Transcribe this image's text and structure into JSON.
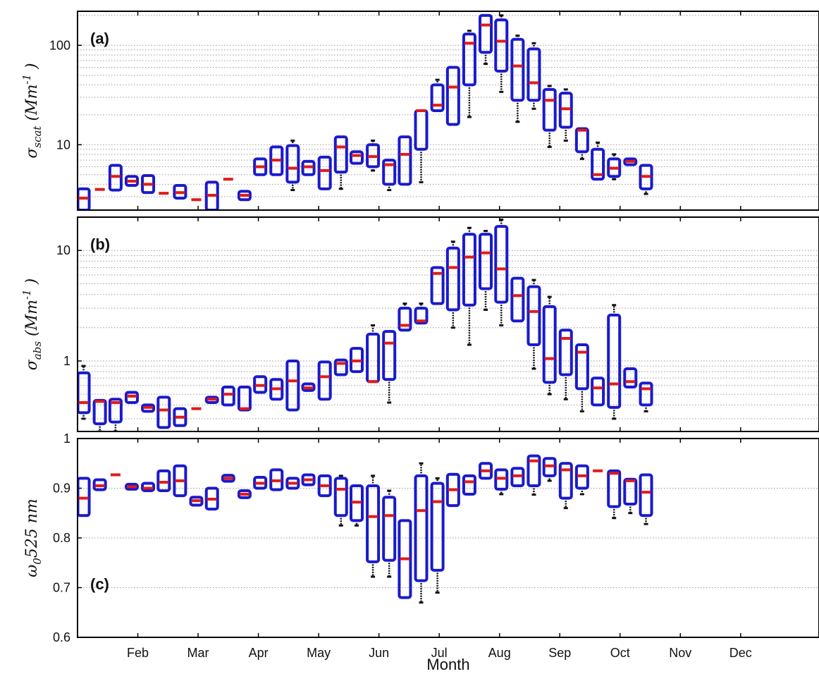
{
  "colors": {
    "box": "#1a1acc",
    "median": "#e01b1b",
    "whisker": "#111111",
    "grid": "#9a9a9a",
    "axis": "#000000"
  },
  "x_axis_title": "Month",
  "chart_data": [
    {
      "type": "box",
      "panel_label": "(a)",
      "ylabel": {
        "symbol": "σ",
        "sub": "scat",
        "unit_open": " (Mm",
        "sup": "-1",
        "unit_close": " )"
      },
      "yscale": "log",
      "ylim": [
        2.2,
        220
      ],
      "yticks": [
        10,
        100
      ],
      "ytick_labels": [
        "10",
        "100"
      ],
      "grid": "dotted, minor log gridlines",
      "xlim": [
        0,
        12.3
      ],
      "xticks": [
        1,
        2,
        3,
        4,
        5,
        6,
        7,
        8,
        9,
        10,
        11
      ],
      "xtick_labels": [
        "Feb",
        "Mar",
        "Apr",
        "May",
        "Jun",
        "Jul",
        "Aug",
        "Sep",
        "Oct",
        "Nov",
        "Dec"
      ],
      "boxes": [
        {
          "x": 0.1,
          "q1": 2.2,
          "median": 2.9,
          "q3": 3.6
        },
        {
          "x": 0.37,
          "q1": 3.55,
          "median": 3.55,
          "q3": 3.55
        },
        {
          "x": 0.63,
          "q1": 3.5,
          "median": 4.8,
          "q3": 6.2
        },
        {
          "x": 0.9,
          "q1": 3.9,
          "median": 4.3,
          "q3": 4.8
        },
        {
          "x": 1.17,
          "q1": 3.3,
          "median": 4.0,
          "q3": 4.9
        },
        {
          "x": 1.43,
          "q1": 3.25,
          "median": 3.25,
          "q3": 3.25
        },
        {
          "x": 1.7,
          "q1": 2.9,
          "median": 3.3,
          "q3": 3.9
        },
        {
          "x": 1.97,
          "q1": 2.8,
          "median": 2.8,
          "q3": 2.8
        },
        {
          "x": 2.23,
          "q1": 2.2,
          "median": 3.1,
          "q3": 4.2
        },
        {
          "x": 2.5,
          "q1": 4.5,
          "median": 4.5,
          "q3": 4.5
        },
        {
          "x": 2.77,
          "q1": 2.8,
          "median": 3.1,
          "q3": 3.4
        },
        {
          "x": 3.03,
          "q1": 5.0,
          "median": 6.0,
          "q3": 7.2
        },
        {
          "x": 3.3,
          "q1": 5.0,
          "median": 7.0,
          "q3": 9.5
        },
        {
          "x": 3.57,
          "q1": 4.2,
          "median": 5.8,
          "q3": 9.8,
          "wlo": 3.5,
          "whi": 11
        },
        {
          "x": 3.83,
          "q1": 5.0,
          "median": 6.0,
          "q3": 6.8
        },
        {
          "x": 4.1,
          "q1": 3.6,
          "median": 5.5,
          "q3": 7.5
        },
        {
          "x": 4.37,
          "q1": 5.3,
          "median": 9.5,
          "q3": 12,
          "wlo": 3.6
        },
        {
          "x": 4.63,
          "q1": 6.5,
          "median": 7.8,
          "q3": 8.5
        },
        {
          "x": 4.9,
          "q1": 6.0,
          "median": 7.6,
          "q3": 10,
          "wlo": 5.5,
          "whi": 11
        },
        {
          "x": 5.17,
          "q1": 4.0,
          "median": 6.3,
          "q3": 7.0,
          "wlo": 3.5
        },
        {
          "x": 5.43,
          "q1": 4.0,
          "median": 8.0,
          "q3": 12
        },
        {
          "x": 5.7,
          "q1": 9.0,
          "median": 22,
          "q3": 22,
          "wlo": 4.2
        },
        {
          "x": 5.97,
          "q1": 22,
          "median": 25,
          "q3": 40,
          "whi": 45
        },
        {
          "x": 6.23,
          "q1": 16,
          "median": 38,
          "q3": 60
        },
        {
          "x": 6.5,
          "q1": 40,
          "median": 105,
          "q3": 130,
          "wlo": 19,
          "whi": 140
        },
        {
          "x": 6.77,
          "q1": 85,
          "median": 160,
          "q3": 200,
          "wlo": 65
        },
        {
          "x": 7.03,
          "q1": 55,
          "median": 110,
          "q3": 180,
          "wlo": 34,
          "whi": 200
        },
        {
          "x": 7.3,
          "q1": 28,
          "median": 62,
          "q3": 115,
          "wlo": 17,
          "whi": 125
        },
        {
          "x": 7.57,
          "q1": 28,
          "median": 42,
          "q3": 92,
          "wlo": 23,
          "whi": 105
        },
        {
          "x": 7.83,
          "q1": 14,
          "median": 28,
          "q3": 36,
          "wlo": 9.5,
          "whi": 39
        },
        {
          "x": 8.1,
          "q1": 15,
          "median": 23,
          "q3": 33,
          "wlo": 11,
          "whi": 36
        },
        {
          "x": 8.37,
          "q1": 8.5,
          "median": 14,
          "q3": 14.5,
          "wlo": 7.2
        },
        {
          "x": 8.63,
          "q1": 4.5,
          "median": 5.0,
          "q3": 9.0,
          "whi": 10.5
        },
        {
          "x": 8.9,
          "q1": 4.8,
          "median": 5.8,
          "q3": 7.2,
          "wlo": 4.5,
          "whi": 8.0
        },
        {
          "x": 9.17,
          "q1": 6.3,
          "median": 6.8,
          "q3": 7.2
        },
        {
          "x": 9.43,
          "q1": 3.6,
          "median": 4.8,
          "q3": 6.2,
          "wlo": 3.2
        }
      ]
    },
    {
      "type": "box",
      "panel_label": "(b)",
      "ylabel": {
        "symbol": "σ",
        "sub": "abs",
        "unit_open": " (Mm",
        "sup": "-1",
        "unit_close": " )"
      },
      "yscale": "log",
      "ylim": [
        0.23,
        20
      ],
      "yticks": [
        1,
        10
      ],
      "ytick_labels": [
        "1",
        "10"
      ],
      "grid": "dotted, minor log gridlines",
      "xlim": [
        0,
        12.3
      ],
      "xticks": [
        1,
        2,
        3,
        4,
        5,
        6,
        7,
        8,
        9,
        10,
        11
      ],
      "xtick_labels": [
        "Feb",
        "Mar",
        "Apr",
        "May",
        "Jun",
        "Jul",
        "Aug",
        "Sep",
        "Oct",
        "Nov",
        "Dec"
      ],
      "boxes": [
        {
          "x": 0.1,
          "q1": 0.34,
          "median": 0.42,
          "q3": 0.78,
          "wlo": 0.3,
          "whi": 0.9
        },
        {
          "x": 0.37,
          "q1": 0.27,
          "median": 0.43,
          "q3": 0.44,
          "wlo": 0.23
        },
        {
          "x": 0.63,
          "q1": 0.28,
          "median": 0.42,
          "q3": 0.45,
          "wlo": 0.23
        },
        {
          "x": 0.9,
          "q1": 0.42,
          "median": 0.48,
          "q3": 0.52
        },
        {
          "x": 1.17,
          "q1": 0.35,
          "median": 0.38,
          "q3": 0.4
        },
        {
          "x": 1.43,
          "q1": 0.25,
          "median": 0.36,
          "q3": 0.47
        },
        {
          "x": 1.7,
          "q1": 0.26,
          "median": 0.31,
          "q3": 0.37
        },
        {
          "x": 1.97,
          "q1": 0.37,
          "median": 0.37,
          "q3": 0.37
        },
        {
          "x": 2.23,
          "q1": 0.42,
          "median": 0.45,
          "q3": 0.47
        },
        {
          "x": 2.5,
          "q1": 0.4,
          "median": 0.5,
          "q3": 0.58
        },
        {
          "x": 2.77,
          "q1": 0.36,
          "median": 0.37,
          "q3": 0.58
        },
        {
          "x": 3.03,
          "q1": 0.52,
          "median": 0.6,
          "q3": 0.72
        },
        {
          "x": 3.3,
          "q1": 0.45,
          "median": 0.56,
          "q3": 0.68
        },
        {
          "x": 3.57,
          "q1": 0.36,
          "median": 0.66,
          "q3": 1.0
        },
        {
          "x": 3.83,
          "q1": 0.54,
          "median": 0.57,
          "q3": 0.62
        },
        {
          "x": 4.1,
          "q1": 0.45,
          "median": 0.72,
          "q3": 0.98
        },
        {
          "x": 4.37,
          "q1": 0.75,
          "median": 0.95,
          "q3": 1.02
        },
        {
          "x": 4.63,
          "q1": 0.8,
          "median": 1.0,
          "q3": 1.3
        },
        {
          "x": 4.9,
          "q1": 0.65,
          "median": 0.65,
          "q3": 1.75,
          "whi": 2.1
        },
        {
          "x": 5.17,
          "q1": 0.68,
          "median": 1.45,
          "q3": 1.85,
          "wlo": 0.42
        },
        {
          "x": 5.43,
          "q1": 1.9,
          "median": 2.1,
          "q3": 3.0,
          "whi": 3.3
        },
        {
          "x": 5.7,
          "q1": 2.2,
          "median": 2.3,
          "q3": 3.0,
          "whi": 3.3
        },
        {
          "x": 5.97,
          "q1": 3.3,
          "median": 6.2,
          "q3": 7.0
        },
        {
          "x": 6.23,
          "q1": 2.9,
          "median": 7.0,
          "q3": 10.5,
          "wlo": 2.0,
          "whi": 12
        },
        {
          "x": 6.5,
          "q1": 3.2,
          "median": 8.7,
          "q3": 14,
          "wlo": 1.4,
          "whi": 16
        },
        {
          "x": 6.77,
          "q1": 4.5,
          "median": 9.5,
          "q3": 14,
          "wlo": 2.9,
          "whi": 15
        },
        {
          "x": 7.03,
          "q1": 3.4,
          "median": 6.8,
          "q3": 16.5,
          "wlo": 2.1,
          "whi": 19
        },
        {
          "x": 7.3,
          "q1": 2.3,
          "median": 3.9,
          "q3": 5.6
        },
        {
          "x": 7.57,
          "q1": 1.4,
          "median": 2.8,
          "q3": 4.7,
          "wlo": 0.85,
          "whi": 5.4
        },
        {
          "x": 7.83,
          "q1": 0.64,
          "median": 1.05,
          "q3": 3.1,
          "wlo": 0.5,
          "whi": 3.8
        },
        {
          "x": 8.1,
          "q1": 0.75,
          "median": 1.6,
          "q3": 1.9,
          "wlo": 0.45
        },
        {
          "x": 8.37,
          "q1": 0.56,
          "median": 1.2,
          "q3": 1.4,
          "wlo": 0.35
        },
        {
          "x": 8.63,
          "q1": 0.4,
          "median": 0.57,
          "q3": 0.7
        },
        {
          "x": 8.9,
          "q1": 0.38,
          "median": 0.62,
          "q3": 2.6,
          "wlo": 0.3,
          "whi": 3.2
        },
        {
          "x": 9.17,
          "q1": 0.58,
          "median": 0.65,
          "q3": 0.85
        },
        {
          "x": 9.43,
          "q1": 0.4,
          "median": 0.56,
          "q3": 0.63,
          "wlo": 0.35
        }
      ]
    },
    {
      "type": "box",
      "panel_label": "(c)",
      "ylabel": {
        "symbol": "ω",
        "sub": "0",
        "rest": "525 nm"
      },
      "yscale": "linear",
      "ylim": [
        0.6,
        1.0
      ],
      "yticks": [
        0.6,
        0.7,
        0.8,
        0.9,
        1
      ],
      "ytick_labels": [
        "0.6",
        "0.7",
        "0.8",
        "0.9",
        "1"
      ],
      "grid": "dotted, major gridlines",
      "xlim": [
        0,
        12.3
      ],
      "xticks": [
        1,
        2,
        3,
        4,
        5,
        6,
        7,
        8,
        9,
        10,
        11
      ],
      "xtick_labels": [
        "Feb",
        "Mar",
        "Apr",
        "May",
        "Jun",
        "Jul",
        "Aug",
        "Sep",
        "Oct",
        "Nov",
        "Dec"
      ],
      "boxes": [
        {
          "x": 0.1,
          "q1": 0.845,
          "median": 0.88,
          "q3": 0.92
        },
        {
          "x": 0.37,
          "q1": 0.897,
          "median": 0.905,
          "q3": 0.917
        },
        {
          "x": 0.63,
          "q1": 0.927,
          "median": 0.927,
          "q3": 0.927
        },
        {
          "x": 0.9,
          "q1": 0.898,
          "median": 0.903,
          "q3": 0.908
        },
        {
          "x": 1.17,
          "q1": 0.895,
          "median": 0.9,
          "q3": 0.91
        },
        {
          "x": 1.43,
          "q1": 0.895,
          "median": 0.912,
          "q3": 0.935
        },
        {
          "x": 1.7,
          "q1": 0.885,
          "median": 0.915,
          "q3": 0.945
        },
        {
          "x": 1.97,
          "q1": 0.866,
          "median": 0.875,
          "q3": 0.882
        },
        {
          "x": 2.23,
          "q1": 0.858,
          "median": 0.878,
          "q3": 0.9
        },
        {
          "x": 2.5,
          "q1": 0.914,
          "median": 0.92,
          "q3": 0.926
        },
        {
          "x": 2.77,
          "q1": 0.881,
          "median": 0.888,
          "q3": 0.895
        },
        {
          "x": 3.03,
          "q1": 0.9,
          "median": 0.91,
          "q3": 0.922
        },
        {
          "x": 3.3,
          "q1": 0.897,
          "median": 0.915,
          "q3": 0.937
        },
        {
          "x": 3.57,
          "q1": 0.9,
          "median": 0.91,
          "q3": 0.92
        },
        {
          "x": 3.83,
          "q1": 0.907,
          "median": 0.917,
          "q3": 0.927
        },
        {
          "x": 4.1,
          "q1": 0.885,
          "median": 0.905,
          "q3": 0.925
        },
        {
          "x": 4.37,
          "q1": 0.845,
          "median": 0.898,
          "q3": 0.92,
          "wlo": 0.825,
          "whi": 0.925
        },
        {
          "x": 4.63,
          "q1": 0.835,
          "median": 0.872,
          "q3": 0.905,
          "wlo": 0.825
        },
        {
          "x": 4.9,
          "q1": 0.752,
          "median": 0.843,
          "q3": 0.905,
          "wlo": 0.722,
          "whi": 0.925
        },
        {
          "x": 5.17,
          "q1": 0.755,
          "median": 0.845,
          "q3": 0.882,
          "wlo": 0.722,
          "whi": 0.895
        },
        {
          "x": 5.43,
          "q1": 0.68,
          "median": 0.758,
          "q3": 0.835
        },
        {
          "x": 5.7,
          "q1": 0.714,
          "median": 0.855,
          "q3": 0.925,
          "wlo": 0.67,
          "whi": 0.95
        },
        {
          "x": 5.97,
          "q1": 0.735,
          "median": 0.873,
          "q3": 0.91,
          "wlo": 0.69,
          "whi": 0.92
        },
        {
          "x": 6.23,
          "q1": 0.865,
          "median": 0.897,
          "q3": 0.928
        },
        {
          "x": 6.5,
          "q1": 0.888,
          "median": 0.913,
          "q3": 0.925
        },
        {
          "x": 6.77,
          "q1": 0.92,
          "median": 0.935,
          "q3": 0.95
        },
        {
          "x": 7.03,
          "q1": 0.898,
          "median": 0.92,
          "q3": 0.937,
          "wlo": 0.888
        },
        {
          "x": 7.3,
          "q1": 0.905,
          "median": 0.925,
          "q3": 0.94
        },
        {
          "x": 7.57,
          "q1": 0.905,
          "median": 0.955,
          "q3": 0.965,
          "wlo": 0.887
        },
        {
          "x": 7.83,
          "q1": 0.925,
          "median": 0.945,
          "q3": 0.96,
          "wlo": 0.915
        },
        {
          "x": 8.1,
          "q1": 0.88,
          "median": 0.937,
          "q3": 0.95,
          "wlo": 0.86
        },
        {
          "x": 8.37,
          "q1": 0.9,
          "median": 0.925,
          "q3": 0.945,
          "wlo": 0.888
        },
        {
          "x": 8.63,
          "q1": 0.935,
          "median": 0.935,
          "q3": 0.935
        },
        {
          "x": 8.9,
          "q1": 0.863,
          "median": 0.93,
          "q3": 0.935,
          "wlo": 0.84
        },
        {
          "x": 9.17,
          "q1": 0.868,
          "median": 0.915,
          "q3": 0.918,
          "wlo": 0.85
        },
        {
          "x": 9.43,
          "q1": 0.845,
          "median": 0.892,
          "q3": 0.927,
          "wlo": 0.828
        }
      ]
    }
  ]
}
